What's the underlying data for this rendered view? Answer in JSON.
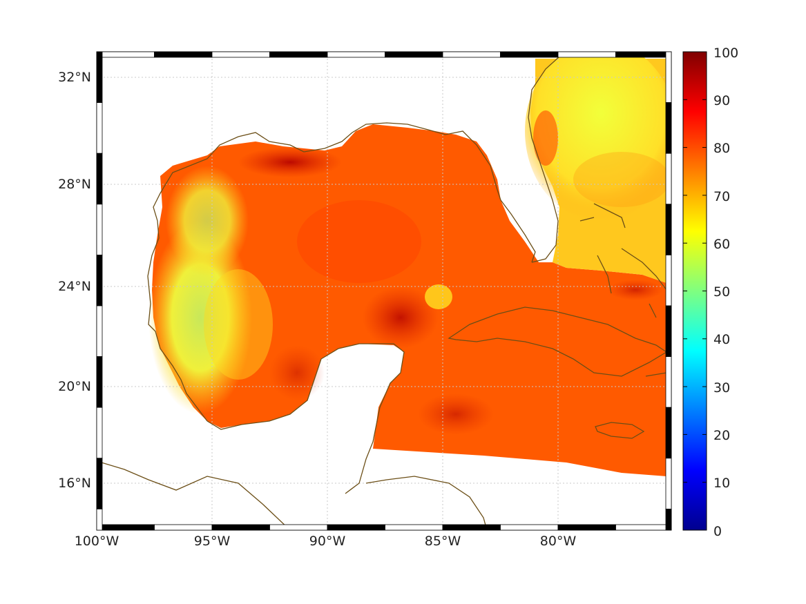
{
  "map": {
    "x_ticks": [
      "100°W",
      "95°W",
      "90°W",
      "85°W",
      "80°W"
    ],
    "y_ticks": [
      "32°N",
      "28°N",
      "24°N",
      "20°N",
      "16°N"
    ],
    "colorbar_ticks": [
      "100",
      "90",
      "80",
      "70",
      "60",
      "50",
      "40",
      "30",
      "20",
      "10",
      "0"
    ],
    "colorbar_range": [
      0,
      100
    ],
    "colormap": "jet",
    "colors": {
      "coastline": "#6b4e16",
      "grid": "#c8c8c8",
      "land": "#ffffff",
      "frame_dark": "#000000",
      "frame_light": "#ffffff"
    }
  }
}
